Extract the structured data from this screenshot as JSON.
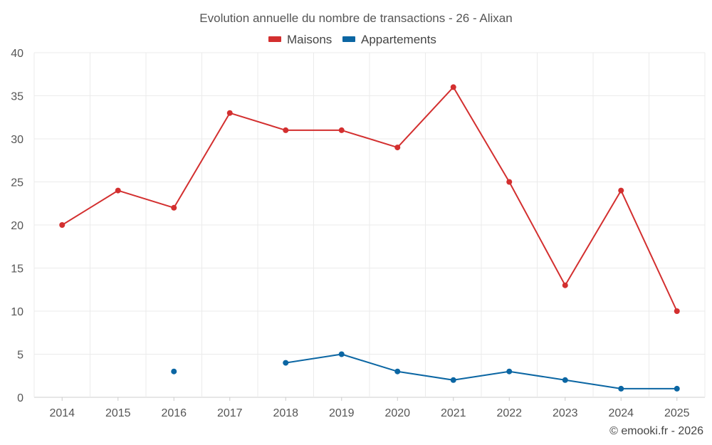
{
  "chart_data": {
    "type": "line",
    "title": "Evolution annuelle du nombre de transactions - 26 - Alixan",
    "categories": [
      "2014",
      "2015",
      "2016",
      "2017",
      "2018",
      "2019",
      "2020",
      "2021",
      "2022",
      "2023",
      "2024",
      "2025"
    ],
    "series": [
      {
        "name": "Maisons",
        "color": "#d32f2f",
        "values": [
          20,
          24,
          22,
          33,
          31,
          31,
          29,
          36,
          25,
          13,
          24,
          10
        ]
      },
      {
        "name": "Appartements",
        "color": "#0b66a3",
        "values": [
          null,
          null,
          3,
          null,
          4,
          5,
          3,
          2,
          3,
          2,
          1,
          1
        ]
      }
    ],
    "ylim": [
      0,
      40
    ],
    "yticks": [
      0,
      5,
      10,
      15,
      20,
      25,
      30,
      35,
      40
    ],
    "grid": true,
    "legend": "top-center",
    "xlabel": "",
    "ylabel": ""
  },
  "credit": "© emooki.fr - 2026"
}
